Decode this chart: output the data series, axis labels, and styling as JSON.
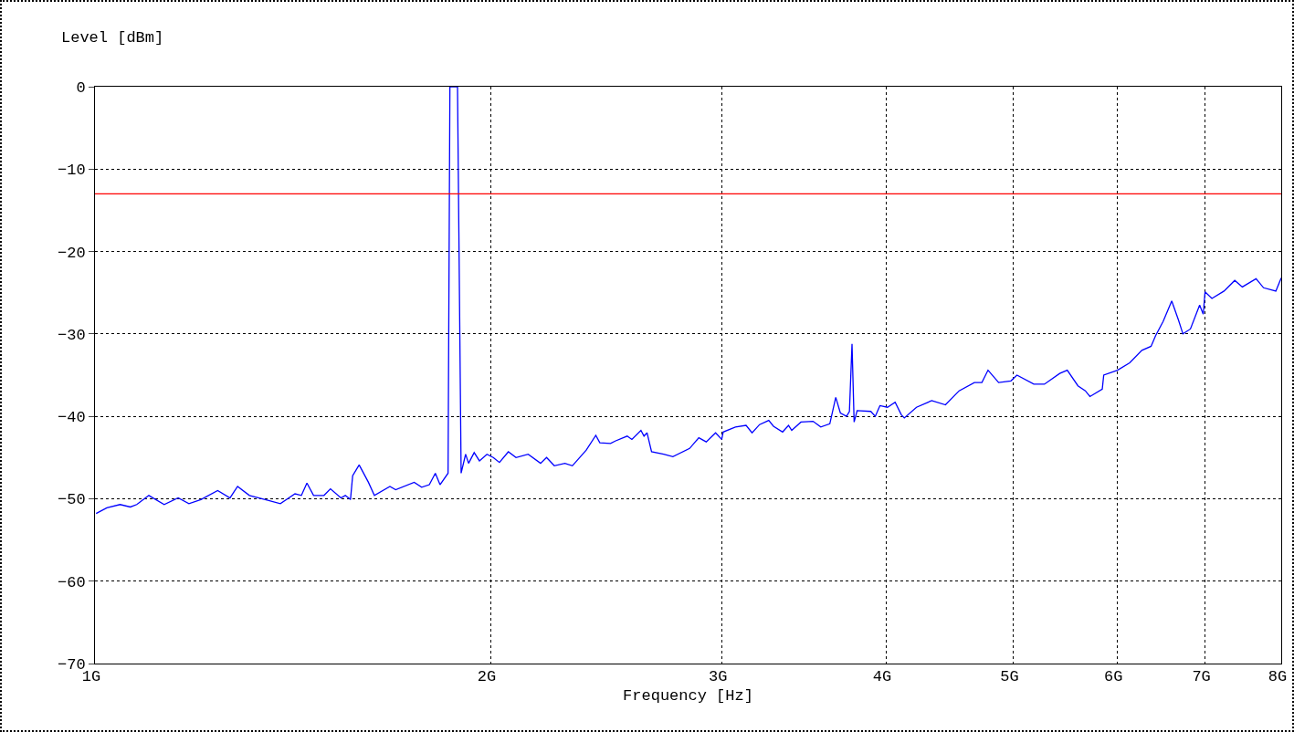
{
  "chart_data": {
    "type": "line",
    "xlabel": "Frequency [Hz]",
    "ylabel": "Level [dBm]",
    "log": "x",
    "grid": true,
    "marker": "none",
    "line_style": "solid",
    "xlim": [
      1,
      8
    ],
    "xticks": [
      {
        "value": 1,
        "label": "1G"
      },
      {
        "value": 2,
        "label": "2G"
      },
      {
        "value": 3,
        "label": "3G"
      },
      {
        "value": 4,
        "label": "4G"
      },
      {
        "value": 5,
        "label": "5G"
      },
      {
        "value": 6,
        "label": "6G"
      },
      {
        "value": 7,
        "label": "7G"
      },
      {
        "value": 8,
        "label": "8G"
      }
    ],
    "ylim": [
      -70,
      0
    ],
    "yticks": [
      -70,
      -60,
      -50,
      -40,
      -30,
      -20,
      -10,
      0
    ],
    "ref_lines": [
      {
        "axis": "y",
        "value": -13,
        "color": "#ff0000"
      }
    ],
    "series": [
      {
        "color": "#0000ff",
        "x": [
          1.002,
          1.021,
          1.045,
          1.064,
          1.076,
          1.099,
          1.129,
          1.157,
          1.179,
          1.204,
          1.24,
          1.267,
          1.284,
          1.311,
          1.354,
          1.384,
          1.42,
          1.436,
          1.45,
          1.467,
          1.494,
          1.511,
          1.539,
          1.551,
          1.565,
          1.571,
          1.589,
          1.615,
          1.632,
          1.677,
          1.694,
          1.75,
          1.773,
          1.797,
          1.816,
          1.831,
          1.857,
          1.863,
          1.888,
          1.9,
          1.915,
          1.925,
          1.944,
          1.962,
          1.988,
          2.01,
          2.032,
          2.064,
          2.092,
          2.137,
          2.184,
          2.207,
          2.237,
          2.279,
          2.309,
          2.366,
          2.406,
          2.423,
          2.469,
          2.489,
          2.542,
          2.563,
          2.604,
          2.618,
          2.632,
          2.653,
          2.71,
          2.754,
          2.836,
          2.882,
          2.92,
          2.968,
          3.0,
          3.008,
          3.073,
          3.131,
          3.164,
          3.206,
          3.258,
          3.285,
          3.338,
          3.373,
          3.392,
          3.447,
          3.521,
          3.569,
          3.626,
          3.664,
          3.694,
          3.734,
          3.753,
          3.77,
          3.784,
          3.804,
          3.896,
          3.927,
          3.959,
          4.012,
          4.066,
          4.11,
          4.132,
          4.221,
          4.335,
          4.441,
          4.549,
          4.672,
          4.734,
          4.785,
          4.875,
          4.981,
          5.034,
          5.185,
          5.282,
          5.426,
          5.498,
          5.602,
          5.675,
          5.721,
          5.846,
          5.861,
          6.004,
          6.134,
          6.266,
          6.368,
          6.419,
          6.504,
          6.603,
          6.681,
          6.734,
          6.823,
          6.934,
          6.978,
          7.0,
          7.085,
          7.237,
          7.374,
          7.473,
          7.655,
          7.756,
          7.925,
          8.0
        ],
        "values": [
          -51.8,
          -51.1,
          -50.7,
          -51.0,
          -50.7,
          -49.6,
          -50.7,
          -49.9,
          -50.6,
          -50.1,
          -49.0,
          -49.9,
          -48.5,
          -49.6,
          -50.2,
          -50.6,
          -49.4,
          -49.6,
          -48.1,
          -49.6,
          -49.6,
          -48.8,
          -49.9,
          -49.6,
          -50.1,
          -47.2,
          -45.9,
          -48.0,
          -49.6,
          -48.5,
          -48.9,
          -48.0,
          -48.6,
          -48.3,
          -46.9,
          -48.3,
          -46.9,
          0,
          0,
          -46.9,
          -44.6,
          -45.7,
          -44.4,
          -45.4,
          -44.6,
          -45.0,
          -45.6,
          -44.3,
          -45.0,
          -44.6,
          -45.7,
          -45.0,
          -46.0,
          -45.7,
          -46.0,
          -44.1,
          -42.3,
          -43.2,
          -43.3,
          -43.0,
          -42.4,
          -42.8,
          -41.7,
          -42.4,
          -42.0,
          -44.3,
          -44.6,
          -44.9,
          -43.9,
          -42.6,
          -43.1,
          -42.0,
          -42.8,
          -41.9,
          -41.3,
          -41.1,
          -42.0,
          -41.0,
          -40.5,
          -41.2,
          -41.9,
          -41.1,
          -41.7,
          -40.7,
          -40.6,
          -41.3,
          -40.9,
          -37.7,
          -39.6,
          -40.0,
          -39.4,
          -31.2,
          -40.7,
          -39.3,
          -39.4,
          -40.0,
          -38.7,
          -38.9,
          -38.3,
          -39.8,
          -40.2,
          -38.9,
          -38.1,
          -38.6,
          -36.9,
          -35.9,
          -35.9,
          -34.4,
          -35.9,
          -35.7,
          -35.0,
          -36.1,
          -36.1,
          -34.8,
          -34.4,
          -36.3,
          -36.9,
          -37.6,
          -36.7,
          -35.0,
          -34.4,
          -33.5,
          -32.0,
          -31.5,
          -30.2,
          -28.5,
          -26.0,
          -28.3,
          -30.0,
          -29.4,
          -26.5,
          -27.6,
          -24.9,
          -25.7,
          -24.8,
          -23.5,
          -24.3,
          -23.3,
          -24.4,
          -24.8,
          -23.2
        ]
      }
    ]
  }
}
